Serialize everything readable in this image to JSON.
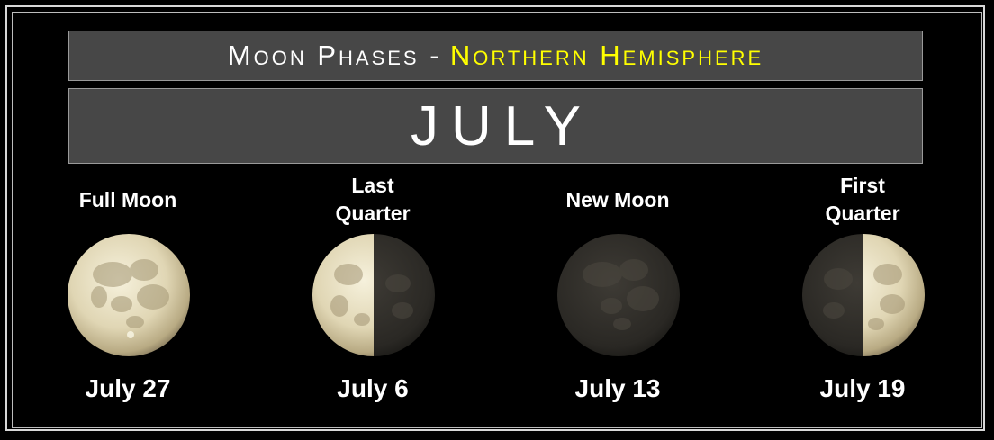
{
  "header": {
    "title_prefix": "Moon Phases -",
    "title_accent": "Northern Hemisphere",
    "accent_color": "#ffff00"
  },
  "month": "JULY",
  "phases": [
    {
      "label_lines": [
        "Full Moon"
      ],
      "date": "July 27",
      "icon": "full-moon-icon"
    },
    {
      "label_lines": [
        "Last",
        "Quarter"
      ],
      "date": "July 6",
      "icon": "last-quarter-moon-icon"
    },
    {
      "label_lines": [
        "New Moon"
      ],
      "date": "July 13",
      "icon": "new-moon-icon"
    },
    {
      "label_lines": [
        "First",
        "Quarter"
      ],
      "date": "July 19",
      "icon": "first-quarter-moon-icon"
    }
  ]
}
